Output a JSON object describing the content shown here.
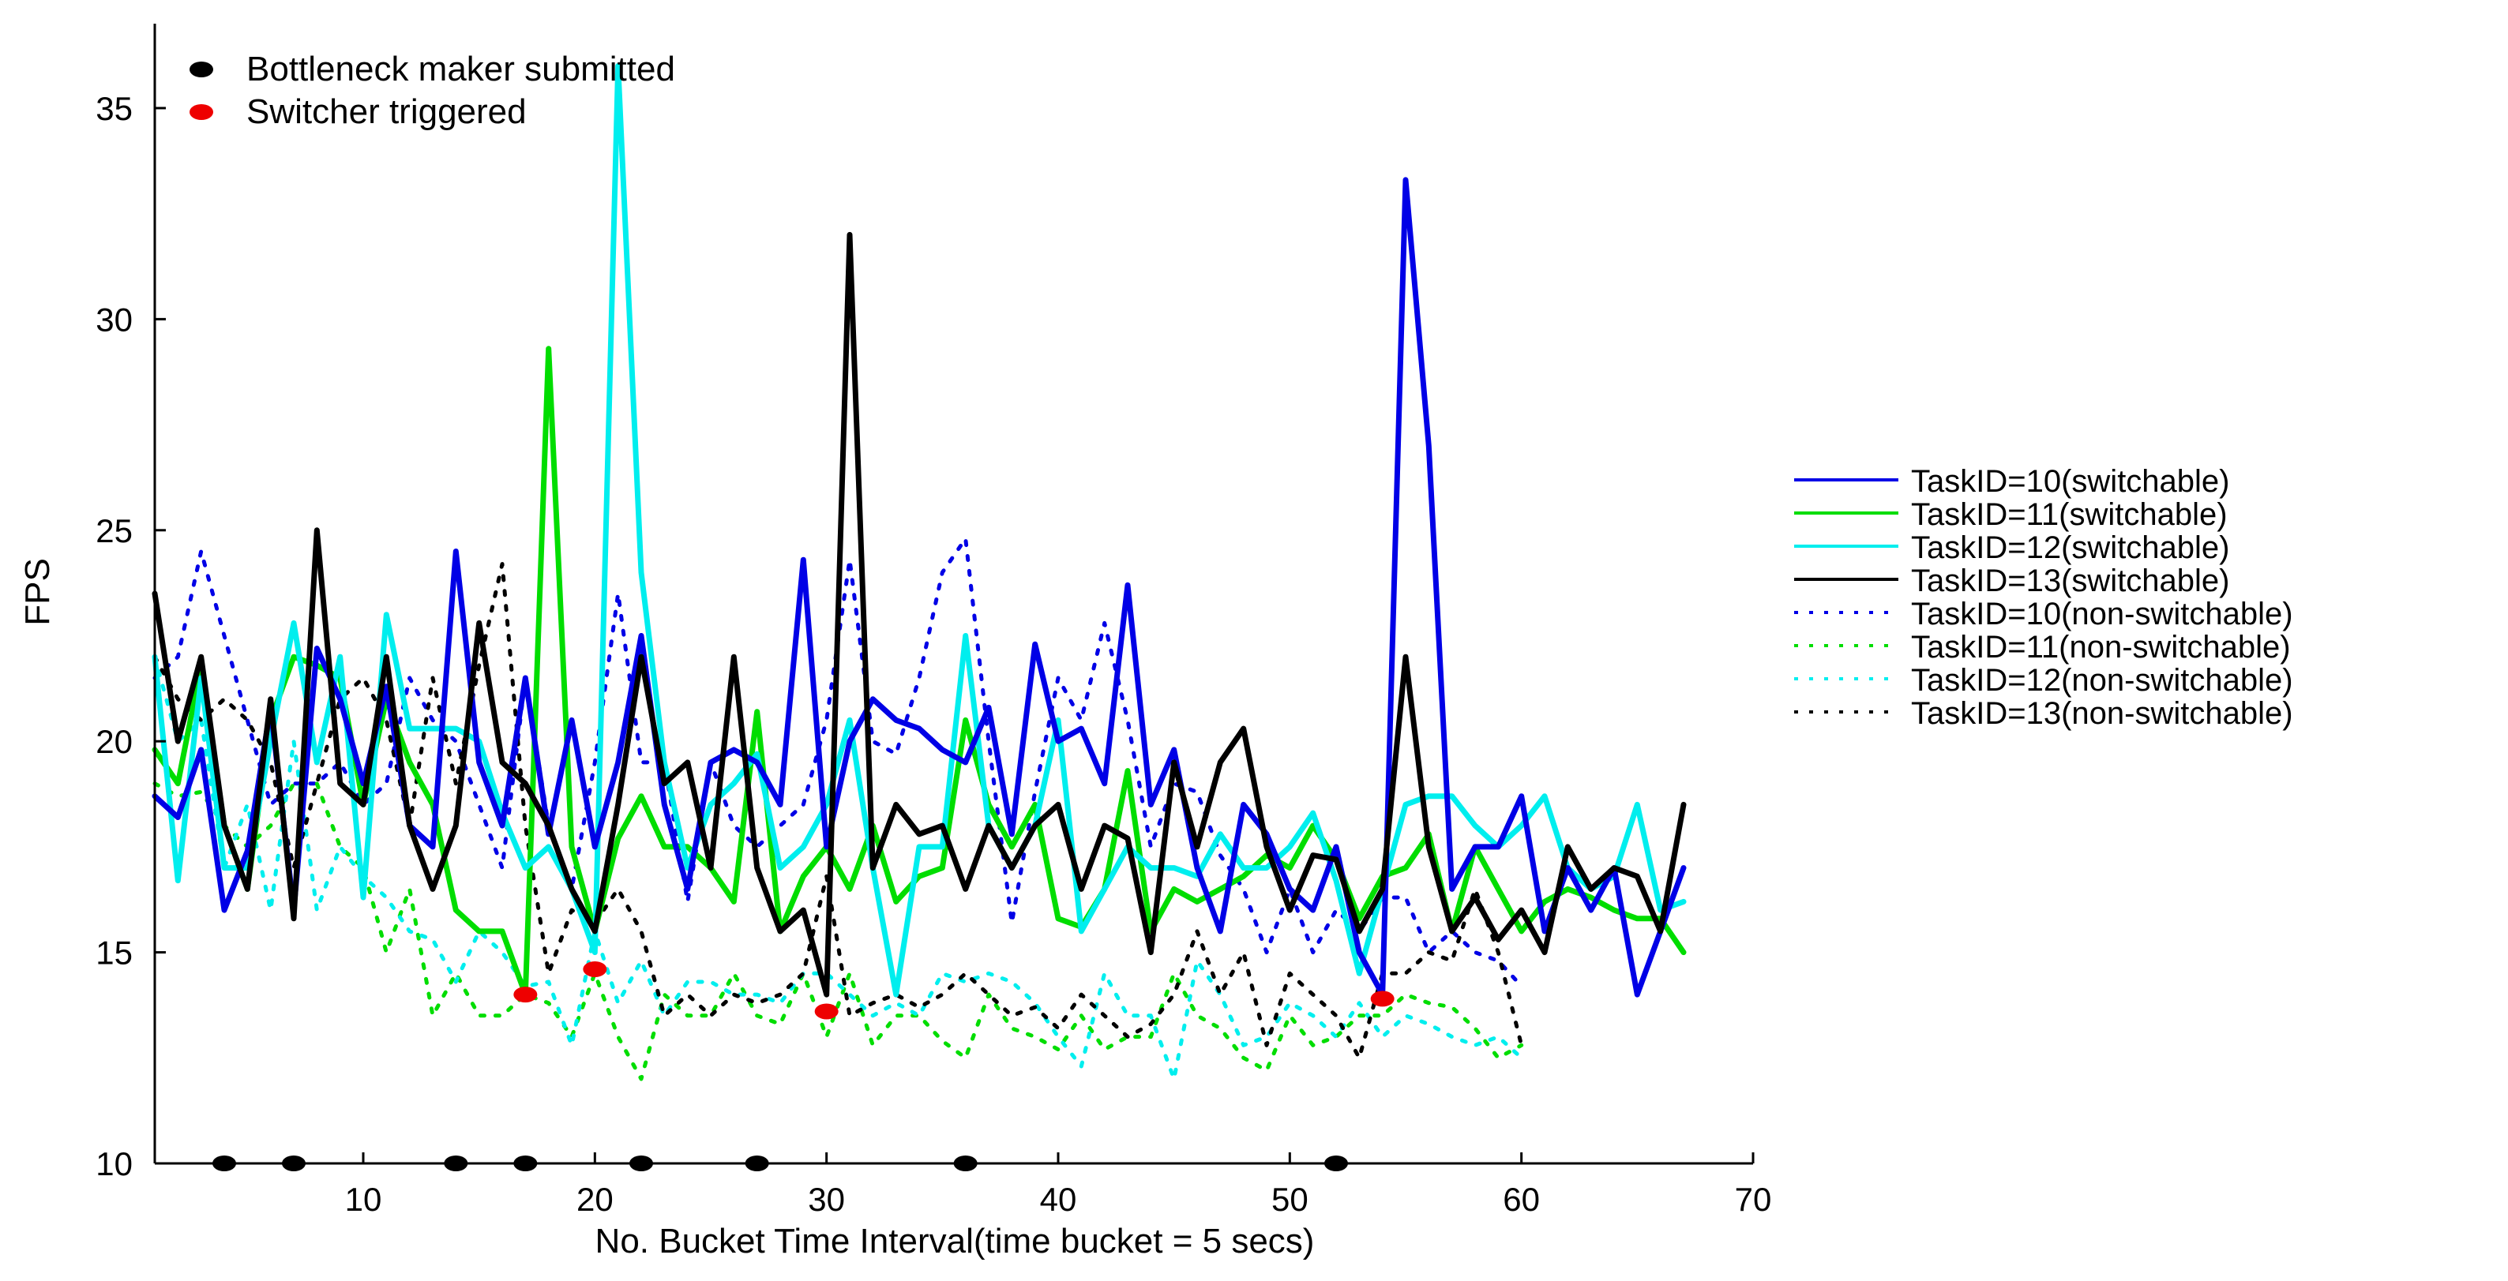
{
  "chart_data": {
    "type": "line",
    "xlabel": "No. Bucket Time Interval(time bucket = 5 secs)",
    "ylabel": "FPS",
    "xlim": [
      1,
      70
    ],
    "ylim": [
      10,
      37
    ],
    "xticks": [
      10,
      20,
      30,
      40,
      50,
      60,
      70
    ],
    "yticks": [
      10,
      15,
      20,
      25,
      30,
      35
    ],
    "grid": false,
    "legend_placement": "right",
    "marker_legend_placement": "top-left",
    "series": [
      {
        "name": "TaskID=10(switchable)",
        "color": "#0000e6",
        "style": "solid",
        "width": "thick",
        "x": [
          1,
          2,
          3,
          4,
          5,
          6,
          7,
          8,
          9,
          10,
          11,
          12,
          13,
          14,
          15,
          16,
          17,
          18,
          19,
          20,
          21,
          22,
          23,
          24,
          25,
          26,
          27,
          28,
          29,
          30,
          31,
          32,
          33,
          34,
          35,
          36,
          37,
          38,
          39,
          40,
          41,
          42,
          43,
          44,
          45,
          46,
          47,
          48,
          49,
          50,
          51,
          52,
          53,
          54,
          55,
          56,
          57,
          58,
          59,
          60,
          61,
          62,
          63,
          64,
          65,
          66,
          67
        ],
        "y": [
          18.7,
          18.2,
          19.8,
          16.0,
          17.4,
          20.8,
          16.0,
          22.2,
          21.0,
          19.0,
          21.3,
          18.0,
          17.5,
          24.5,
          19.5,
          18.0,
          21.5,
          17.8,
          20.5,
          17.5,
          19.5,
          22.5,
          18.5,
          16.5,
          19.5,
          19.8,
          19.5,
          18.5,
          24.3,
          17.5,
          20.0,
          21.0,
          20.5,
          20.3,
          19.8,
          19.5,
          20.8,
          17.8,
          22.3,
          20.0,
          20.3,
          19.0,
          23.7,
          18.5,
          19.8,
          17.0,
          15.5,
          18.5,
          17.8,
          16.5,
          16.0,
          17.5,
          15.0,
          14.0,
          33.3,
          27.0,
          16.5,
          17.5,
          17.5,
          18.7,
          15.5,
          17.0,
          16.0,
          17.0,
          14.0,
          15.5,
          17.0
        ]
      },
      {
        "name": "TaskID=11(switchable)",
        "color": "#00dd00",
        "style": "solid",
        "width": "thick",
        "x": [
          1,
          2,
          3,
          4,
          5,
          6,
          7,
          8,
          9,
          10,
          11,
          12,
          13,
          14,
          15,
          16,
          17,
          18,
          19,
          20,
          21,
          22,
          23,
          24,
          25,
          26,
          27,
          28,
          29,
          30,
          31,
          32,
          33,
          34,
          35,
          36,
          37,
          38,
          39,
          40,
          41,
          42,
          43,
          44,
          45,
          46,
          47,
          48,
          49,
          50,
          51,
          52,
          53,
          54,
          55,
          56,
          57,
          58,
          59,
          60,
          61,
          62,
          63,
          64,
          65,
          66,
          67
        ],
        "y": [
          19.8,
          19.0,
          21.8,
          18.0,
          16.5,
          20.5,
          22.0,
          21.8,
          21.5,
          18.5,
          21.0,
          19.5,
          18.5,
          16.0,
          15.5,
          15.5,
          14.0,
          29.3,
          17.5,
          15.5,
          17.7,
          18.7,
          17.5,
          17.5,
          17.0,
          16.2,
          20.7,
          15.5,
          16.8,
          17.5,
          16.5,
          18.0,
          16.2,
          16.8,
          17.0,
          20.5,
          18.5,
          17.5,
          18.5,
          15.8,
          15.6,
          16.5,
          19.3,
          15.5,
          16.5,
          16.2,
          16.5,
          16.8,
          17.3,
          17.0,
          18.0,
          17.2,
          15.8,
          16.8,
          17.0,
          17.8,
          15.5,
          17.5,
          16.5,
          15.5,
          16.2,
          16.5,
          16.3,
          16.0,
          15.8,
          15.8,
          15.0
        ]
      },
      {
        "name": "TaskID=12(switchable)",
        "color": "#00eeee",
        "style": "solid",
        "width": "thick",
        "x": [
          1,
          2,
          3,
          4,
          5,
          6,
          7,
          8,
          9,
          10,
          11,
          12,
          13,
          14,
          15,
          16,
          17,
          18,
          19,
          20,
          21,
          22,
          23,
          24,
          25,
          26,
          27,
          28,
          29,
          30,
          31,
          32,
          33,
          34,
          35,
          36,
          37,
          38,
          39,
          40,
          41,
          42,
          43,
          44,
          45,
          46,
          47,
          48,
          49,
          50,
          51,
          52,
          53,
          54,
          55,
          56,
          57,
          58,
          59,
          60,
          61,
          62,
          63,
          64,
          65,
          66,
          67
        ],
        "y": [
          22.0,
          16.7,
          21.5,
          17.0,
          17.0,
          20.0,
          22.8,
          19.5,
          22.0,
          16.3,
          23.0,
          20.3,
          20.3,
          20.3,
          20.0,
          18.3,
          17.0,
          17.5,
          16.5,
          15.0,
          36.0,
          24.0,
          19.5,
          17.0,
          18.5,
          19.0,
          19.7,
          17.0,
          17.5,
          18.5,
          20.5,
          17.0,
          14.0,
          17.5,
          17.5,
          22.5,
          18.0,
          17.0,
          18.0,
          20.5,
          15.5,
          16.5,
          17.5,
          17.0,
          17.0,
          16.8,
          17.8,
          17.0,
          17.0,
          17.5,
          18.3,
          16.7,
          14.5,
          16.5,
          18.5,
          18.7,
          18.7,
          18.0,
          17.5,
          18.0,
          18.7,
          17.0,
          16.5,
          16.8,
          18.5,
          16.0,
          16.2
        ]
      },
      {
        "name": "TaskID=13(switchable)",
        "color": "#000000",
        "style": "solid",
        "width": "thick",
        "x": [
          1,
          2,
          3,
          4,
          5,
          6,
          7,
          8,
          9,
          10,
          11,
          12,
          13,
          14,
          15,
          16,
          17,
          18,
          19,
          20,
          21,
          22,
          23,
          24,
          25,
          26,
          27,
          28,
          29,
          30,
          31,
          32,
          33,
          34,
          35,
          36,
          37,
          38,
          39,
          40,
          41,
          42,
          43,
          44,
          45,
          46,
          47,
          48,
          49,
          50,
          51,
          52,
          53,
          54,
          55,
          56,
          57,
          58,
          59,
          60,
          61,
          62,
          63,
          64,
          65,
          66,
          67
        ],
        "y": [
          23.5,
          20.0,
          22.0,
          18.0,
          16.5,
          21.0,
          15.8,
          25.0,
          19.0,
          18.5,
          22.0,
          18.0,
          16.5,
          18.0,
          22.8,
          19.5,
          19.0,
          18.0,
          16.5,
          15.5,
          18.5,
          22.0,
          19.0,
          19.5,
          17.0,
          22.0,
          17.0,
          15.5,
          16.0,
          14.0,
          32.0,
          17.0,
          18.5,
          17.8,
          18.0,
          16.5,
          18.0,
          17.0,
          18.0,
          18.5,
          16.5,
          18.0,
          17.7,
          15.0,
          19.5,
          17.5,
          19.5,
          20.3,
          17.5,
          16.0,
          17.3,
          17.2,
          15.5,
          16.5,
          22.0,
          17.5,
          15.5,
          16.3,
          15.3,
          16.0,
          15.0,
          17.5,
          16.5,
          17.0,
          16.8,
          15.5,
          18.5
        ]
      },
      {
        "name": "TaskID=10(non-switchable)",
        "color": "#0000e6",
        "style": "dotted",
        "width": "thick",
        "x": [
          1,
          2,
          3,
          4,
          5,
          6,
          7,
          8,
          9,
          10,
          11,
          12,
          13,
          14,
          15,
          16,
          17,
          18,
          19,
          20,
          21,
          22,
          23,
          24,
          25,
          26,
          27,
          28,
          29,
          30,
          31,
          32,
          33,
          34,
          35,
          36,
          37,
          38,
          39,
          40,
          41,
          42,
          43,
          44,
          45,
          46,
          47,
          48,
          49,
          50,
          51,
          52,
          53,
          54,
          55,
          56,
          57,
          58,
          59,
          60
        ],
        "y": [
          21.5,
          22.0,
          24.5,
          22.5,
          20.5,
          18.5,
          19.0,
          19.0,
          19.5,
          18.5,
          19.0,
          21.5,
          20.5,
          20.0,
          18.5,
          17.0,
          21.5,
          18.0,
          16.5,
          19.5,
          23.5,
          19.5,
          19.5,
          16.2,
          19.5,
          18.0,
          17.5,
          18.0,
          18.5,
          20.5,
          24.3,
          20.0,
          19.7,
          21.5,
          24.0,
          24.8,
          20.0,
          15.7,
          18.8,
          21.5,
          20.5,
          22.8,
          20.5,
          17.5,
          19.0,
          18.8,
          17.3,
          16.5,
          15.0,
          16.5,
          15.0,
          16.0,
          15.5,
          16.3,
          16.3,
          15.0,
          15.5,
          15.0,
          14.8,
          14.2
        ]
      },
      {
        "name": "TaskID=11(non-switchable)",
        "color": "#00dd00",
        "style": "dotted",
        "width": "thick",
        "x": [
          1,
          2,
          3,
          4,
          5,
          6,
          7,
          8,
          9,
          10,
          11,
          12,
          13,
          14,
          15,
          16,
          17,
          18,
          19,
          20,
          21,
          22,
          23,
          24,
          25,
          26,
          27,
          28,
          29,
          30,
          31,
          32,
          33,
          34,
          35,
          36,
          37,
          38,
          39,
          40,
          41,
          42,
          43,
          44,
          45,
          46,
          47,
          48,
          49,
          50,
          51,
          52,
          53,
          54,
          55,
          56,
          57,
          58,
          59,
          60
        ],
        "y": [
          19.0,
          18.7,
          18.8,
          18.0,
          17.5,
          18.0,
          19.0,
          19.0,
          17.5,
          17.0,
          15.0,
          16.5,
          13.5,
          14.5,
          13.5,
          13.5,
          14.0,
          13.8,
          13.0,
          14.5,
          13.0,
          12.0,
          14.0,
          13.5,
          13.5,
          14.5,
          13.5,
          13.3,
          14.5,
          13.0,
          14.5,
          12.8,
          13.5,
          13.5,
          12.9,
          12.5,
          14.0,
          13.2,
          13.0,
          12.7,
          13.5,
          12.7,
          13.0,
          13.0,
          14.5,
          13.5,
          13.2,
          12.5,
          12.2,
          13.5,
          12.8,
          13.0,
          13.5,
          13.5,
          14.0,
          13.8,
          13.7,
          13.2,
          12.5,
          12.8
        ]
      },
      {
        "name": "TaskID=12(non-switchable)",
        "color": "#00eeee",
        "style": "dotted",
        "width": "thick",
        "x": [
          1,
          2,
          3,
          4,
          5,
          6,
          7,
          8,
          9,
          10,
          11,
          12,
          13,
          14,
          15,
          16,
          17,
          18,
          19,
          20,
          21,
          22,
          23,
          24,
          25,
          26,
          27,
          28,
          29,
          30,
          31,
          32,
          33,
          34,
          35,
          36,
          37,
          38,
          39,
          40,
          41,
          42,
          43,
          44,
          45,
          46,
          47,
          48,
          49,
          50,
          51,
          52,
          53,
          54,
          55,
          56,
          57,
          58,
          59,
          60
        ],
        "y": [
          22.0,
          20.0,
          20.5,
          17.0,
          18.5,
          16.0,
          20.0,
          16.0,
          17.5,
          16.8,
          16.3,
          15.5,
          15.3,
          14.3,
          15.5,
          15.0,
          14.2,
          14.3,
          12.8,
          15.5,
          13.8,
          14.8,
          13.5,
          14.3,
          14.3,
          14.0,
          14.0,
          13.8,
          14.5,
          14.5,
          14.0,
          13.5,
          13.8,
          13.5,
          14.5,
          14.3,
          14.5,
          14.3,
          13.8,
          13.0,
          12.3,
          14.5,
          13.5,
          13.5,
          12.0,
          14.8,
          14.0,
          12.8,
          13.0,
          13.8,
          13.5,
          13.0,
          13.8,
          13.0,
          13.5,
          13.3,
          13.0,
          12.8,
          13.0,
          12.5
        ]
      },
      {
        "name": "TaskID=13(non-switchable)",
        "color": "#000000",
        "style": "dotted",
        "width": "thick",
        "x": [
          1,
          2,
          3,
          4,
          5,
          6,
          7,
          8,
          9,
          10,
          11,
          12,
          13,
          14,
          15,
          16,
          17,
          18,
          19,
          20,
          21,
          22,
          23,
          24,
          25,
          26,
          27,
          28,
          29,
          30,
          31,
          32,
          33,
          34,
          35,
          36,
          37,
          38,
          39,
          40,
          41,
          42,
          43,
          44,
          45,
          46,
          47,
          48,
          49,
          50,
          51,
          52,
          53,
          54,
          55,
          56,
          57,
          58,
          59,
          60
        ],
        "y": [
          22.0,
          21.0,
          20.5,
          21.0,
          20.5,
          19.5,
          17.0,
          19.0,
          21.0,
          21.5,
          20.5,
          18.0,
          21.5,
          19.0,
          21.8,
          24.2,
          18.0,
          14.5,
          16.0,
          15.7,
          16.5,
          15.5,
          13.5,
          14.0,
          13.5,
          14.0,
          13.8,
          14.0,
          14.5,
          16.8,
          13.5,
          13.8,
          14.0,
          13.7,
          14.0,
          14.5,
          14.0,
          13.5,
          13.7,
          13.2,
          14.0,
          13.5,
          13.0,
          13.3,
          14.0,
          15.5,
          14.0,
          15.0,
          12.8,
          14.5,
          14.0,
          13.5,
          12.5,
          14.5,
          14.5,
          15.0,
          14.8,
          16.5,
          15.0,
          12.8
        ]
      }
    ],
    "markers": [
      {
        "name": "Bottleneck maker submitted",
        "color": "#000000",
        "points": [
          {
            "x": 4,
            "y": 10
          },
          {
            "x": 7,
            "y": 10
          },
          {
            "x": 14,
            "y": 10
          },
          {
            "x": 17,
            "y": 10
          },
          {
            "x": 22,
            "y": 10
          },
          {
            "x": 27,
            "y": 10
          },
          {
            "x": 36,
            "y": 10
          },
          {
            "x": 52,
            "y": 10
          }
        ]
      },
      {
        "name": "Switcher triggered",
        "color": "#ee0000",
        "points": [
          {
            "x": 17,
            "y": 14.0
          },
          {
            "x": 20,
            "y": 14.6
          },
          {
            "x": 30,
            "y": 13.6
          },
          {
            "x": 54,
            "y": 13.9
          }
        ]
      }
    ]
  }
}
